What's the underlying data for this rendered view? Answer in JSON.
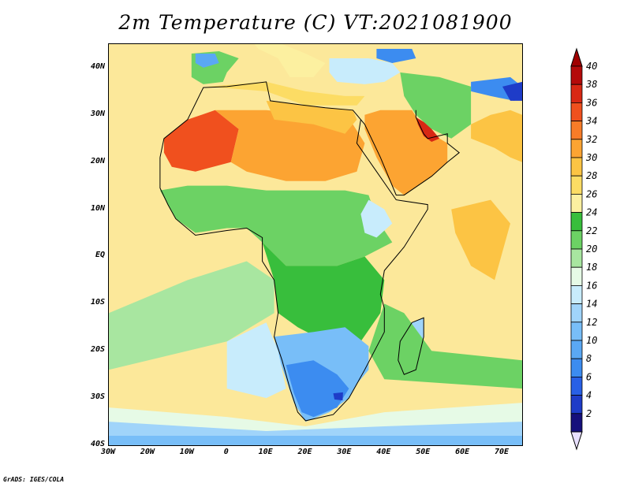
{
  "title": "2m Temperature (C) VT:2021081900",
  "credit": "GrADS: IGES/COLA",
  "map": {
    "projection": "lat-lon",
    "lon_range": [
      -30,
      75
    ],
    "lat_range": [
      -40,
      45
    ],
    "ocean_color": "#fce89a",
    "lat_ticks": [
      {
        "value": 40,
        "label": "40N"
      },
      {
        "value": 30,
        "label": "30N"
      },
      {
        "value": 20,
        "label": "20N"
      },
      {
        "value": 10,
        "label": "10N"
      },
      {
        "value": 0,
        "label": "EQ"
      },
      {
        "value": -10,
        "label": "10S"
      },
      {
        "value": -20,
        "label": "20S"
      },
      {
        "value": -30,
        "label": "30S"
      },
      {
        "value": -40,
        "label": "40S"
      }
    ],
    "lon_ticks": [
      {
        "value": -30,
        "label": "30W"
      },
      {
        "value": -20,
        "label": "20W"
      },
      {
        "value": -10,
        "label": "10W"
      },
      {
        "value": 0,
        "label": "0"
      },
      {
        "value": 10,
        "label": "10E"
      },
      {
        "value": 20,
        "label": "20E"
      },
      {
        "value": 30,
        "label": "30E"
      },
      {
        "value": 40,
        "label": "40E"
      },
      {
        "value": 50,
        "label": "50E"
      },
      {
        "value": 60,
        "label": "60E"
      },
      {
        "value": 70,
        "label": "70E"
      }
    ]
  },
  "colorbar": {
    "levels": [
      "2",
      "4",
      "6",
      "8",
      "10",
      "12",
      "14",
      "16",
      "18",
      "20",
      "22",
      "24",
      "26",
      "28",
      "30",
      "32",
      "34",
      "36",
      "38",
      "40"
    ],
    "colors": [
      "#16107c",
      "#1e3cc8",
      "#2860e6",
      "#3c8cf0",
      "#5aa8f4",
      "#78bef8",
      "#a0d4fa",
      "#c8ecfc",
      "#e6fae6",
      "#a8e6a0",
      "#6cd264",
      "#38be3c",
      "#fcf0a0",
      "#fcdc64",
      "#fcc444",
      "#fca432",
      "#f87c28",
      "#f0501e",
      "#d82814",
      "#b40a0a"
    ],
    "low_end_color": "#e8e0ff",
    "high_end_color": "#a00000"
  },
  "regions": [
    {
      "name": "sahara-west-hot",
      "temp": 35,
      "color": "#f0501e",
      "poly": [
        [
          -16,
          25
        ],
        [
          -10,
          29
        ],
        [
          -3,
          31
        ],
        [
          3,
          27
        ],
        [
          1,
          20
        ],
        [
          -8,
          18
        ],
        [
          -14,
          19
        ],
        [
          -16,
          22
        ]
      ]
    },
    {
      "name": "sahara-central",
      "temp": 31,
      "color": "#fca432",
      "poly": [
        [
          -3,
          31
        ],
        [
          10,
          31
        ],
        [
          22,
          30
        ],
        [
          32,
          28
        ],
        [
          35,
          24
        ],
        [
          33,
          18
        ],
        [
          25,
          16
        ],
        [
          15,
          16
        ],
        [
          5,
          18
        ],
        [
          1,
          20
        ],
        [
          3,
          27
        ]
      ]
    },
    {
      "name": "arabia-hot",
      "temp": 31,
      "color": "#fca432",
      "poly": [
        [
          35,
          30
        ],
        [
          39,
          31
        ],
        [
          47,
          31
        ],
        [
          50,
          27
        ],
        [
          56,
          24
        ],
        [
          56,
          20
        ],
        [
          52,
          17
        ],
        [
          45,
          13
        ],
        [
          42,
          15
        ],
        [
          38,
          21
        ],
        [
          35,
          27
        ]
      ]
    },
    {
      "name": "persian-gulf-hot",
      "temp": 37,
      "color": "#d82814",
      "poly": [
        [
          48,
          29.5
        ],
        [
          51,
          28
        ],
        [
          54,
          25
        ],
        [
          52,
          24.3
        ],
        [
          50,
          25.5
        ],
        [
          48.5,
          28
        ]
      ]
    },
    {
      "name": "egypt-libya",
      "temp": 29,
      "color": "#fcc444",
      "poly": [
        [
          10,
          33
        ],
        [
          20,
          32
        ],
        [
          25,
          31.5
        ],
        [
          32,
          31
        ],
        [
          33,
          29
        ],
        [
          30,
          26
        ],
        [
          22,
          28
        ],
        [
          12,
          29
        ]
      ]
    },
    {
      "name": "sahel-green",
      "temp": 23,
      "color": "#6cd264",
      "poly": [
        [
          -17,
          14
        ],
        [
          -10,
          15
        ],
        [
          0,
          15
        ],
        [
          10,
          14
        ],
        [
          20,
          14
        ],
        [
          30,
          14
        ],
        [
          36,
          13
        ],
        [
          38,
          8
        ],
        [
          42,
          3
        ],
        [
          35,
          0
        ],
        [
          28,
          -2
        ],
        [
          15,
          -2
        ],
        [
          9,
          3
        ],
        [
          5,
          6
        ],
        [
          0,
          6
        ],
        [
          -8,
          5
        ],
        [
          -13,
          8
        ]
      ]
    },
    {
      "name": "central-africa-green",
      "temp": 22,
      "color": "#38be3c",
      "poly": [
        [
          9,
          3
        ],
        [
          15,
          -2
        ],
        [
          28,
          -2
        ],
        [
          35,
          0
        ],
        [
          40,
          -5
        ],
        [
          39,
          -12
        ],
        [
          34,
          -18
        ],
        [
          25,
          -18
        ],
        [
          18,
          -15
        ],
        [
          13,
          -12
        ],
        [
          12,
          -5
        ]
      ]
    },
    {
      "name": "east-africa-highlands",
      "temp": 17,
      "color": "#c8ecfc",
      "poly": [
        [
          36,
          12
        ],
        [
          40,
          10
        ],
        [
          42,
          7
        ],
        [
          38,
          4
        ],
        [
          35,
          5
        ],
        [
          34,
          9
        ]
      ]
    },
    {
      "name": "southern-africa-blue",
      "temp": 11,
      "color": "#78bef8",
      "poly": [
        [
          12,
          -17
        ],
        [
          22,
          -16
        ],
        [
          30,
          -15
        ],
        [
          36,
          -19
        ],
        [
          36,
          -24
        ],
        [
          33,
          -27
        ],
        [
          31,
          -30
        ],
        [
          26,
          -33
        ],
        [
          20,
          -35
        ],
        [
          17,
          -31
        ],
        [
          15,
          -26
        ],
        [
          13,
          -21
        ]
      ]
    },
    {
      "name": "south-africa-cold",
      "temp": 7,
      "color": "#3c8cf0",
      "poly": [
        [
          15,
          -23
        ],
        [
          22,
          -22
        ],
        [
          28,
          -25
        ],
        [
          31,
          -28
        ],
        [
          28,
          -32
        ],
        [
          22,
          -34
        ],
        [
          19,
          -33
        ],
        [
          17,
          -29
        ]
      ]
    },
    {
      "name": "lesotho-cold",
      "temp": 4,
      "color": "#1e3cc8",
      "poly": [
        [
          27,
          -29
        ],
        [
          29.5,
          -28.8
        ],
        [
          29.4,
          -30.5
        ],
        [
          27.3,
          -30.3
        ]
      ]
    },
    {
      "name": "madagascar",
      "temp": 18,
      "color": "#a0d4fa",
      "poly": [
        [
          47,
          -14
        ],
        [
          50,
          -13
        ],
        [
          50,
          -17
        ],
        [
          48,
          -24
        ],
        [
          45,
          -25
        ],
        [
          43.5,
          -22
        ],
        [
          44,
          -18
        ]
      ]
    },
    {
      "name": "iberia",
      "temp": 22,
      "color": "#6cd264",
      "poly": [
        [
          -9,
          43
        ],
        [
          -2,
          43.5
        ],
        [
          3,
          42
        ],
        [
          0,
          39
        ],
        [
          -1,
          37
        ],
        [
          -6,
          36.5
        ],
        [
          -9,
          38
        ]
      ]
    },
    {
      "name": "iberia-cool",
      "temp": 13,
      "color": "#5aa8f4",
      "poly": [
        [
          -8,
          43
        ],
        [
          -3,
          43
        ],
        [
          -2,
          41
        ],
        [
          -6,
          40
        ],
        [
          -8,
          41
        ]
      ]
    },
    {
      "name": "italy-balkans",
      "temp": 24,
      "color": "#fcf0a0",
      "poly": [
        [
          7,
          45
        ],
        [
          14,
          45
        ],
        [
          20,
          43
        ],
        [
          25,
          41
        ],
        [
          22,
          38
        ],
        [
          16,
          38
        ],
        [
          13,
          42
        ],
        [
          8,
          44
        ]
      ]
    },
    {
      "name": "turkey",
      "temp": 17,
      "color": "#c8ecfc",
      "poly": [
        [
          26,
          42
        ],
        [
          36,
          42
        ],
        [
          42,
          41
        ],
        [
          44,
          39
        ],
        [
          40,
          37
        ],
        [
          35,
          36.5
        ],
        [
          28,
          37
        ],
        [
          26,
          39
        ]
      ]
    },
    {
      "name": "caucasus-cold",
      "temp": 9,
      "color": "#3c8cf0",
      "poly": [
        [
          38,
          44
        ],
        [
          47,
          44
        ],
        [
          48,
          42
        ],
        [
          42,
          41
        ],
        [
          38,
          42
        ]
      ]
    },
    {
      "name": "iran",
      "temp": 23,
      "color": "#6cd264",
      "poly": [
        [
          44,
          39
        ],
        [
          54,
          38
        ],
        [
          62,
          36
        ],
        [
          62,
          28
        ],
        [
          57,
          25
        ],
        [
          52,
          27
        ],
        [
          48,
          30
        ],
        [
          45,
          34
        ]
      ]
    },
    {
      "name": "afghanistan-cold",
      "temp": 10,
      "color": "#3c8cf0",
      "poly": [
        [
          62,
          37
        ],
        [
          72,
          38
        ],
        [
          75,
          36
        ],
        [
          73,
          33
        ],
        [
          67,
          34
        ],
        [
          62,
          35
        ]
      ]
    },
    {
      "name": "himalaya-cold",
      "temp": 5,
      "color": "#1e3cc8",
      "poly": [
        [
          70,
          36
        ],
        [
          75,
          37
        ],
        [
          75,
          33
        ],
        [
          72,
          33
        ]
      ]
    },
    {
      "name": "pakistan-india",
      "temp": 29,
      "color": "#fcc444",
      "poly": [
        [
          62,
          28
        ],
        [
          67,
          30
        ],
        [
          72,
          31
        ],
        [
          75,
          30
        ],
        [
          75,
          20
        ],
        [
          72,
          21
        ],
        [
          68,
          23
        ],
        [
          62,
          25
        ]
      ]
    },
    {
      "name": "ocean-south-cool",
      "temp": 18,
      "color": "#e6fae6",
      "poly": [
        [
          -30,
          -32
        ],
        [
          0,
          -34
        ],
        [
          20,
          -36
        ],
        [
          40,
          -33
        ],
        [
          75,
          -31
        ],
        [
          75,
          -40
        ],
        [
          -30,
          -40
        ]
      ]
    },
    {
      "name": "ocean-south-cold",
      "temp": 14,
      "color": "#a0d4fa",
      "poly": [
        [
          -30,
          -35
        ],
        [
          10,
          -37
        ],
        [
          40,
          -36
        ],
        [
          75,
          -35
        ],
        [
          75,
          -40
        ],
        [
          -30,
          -40
        ]
      ]
    },
    {
      "name": "ocean-south-coldest",
      "temp": 12,
      "color": "#78bef8",
      "poly": [
        [
          -30,
          -38
        ],
        [
          75,
          -38
        ],
        [
          75,
          -40
        ],
        [
          -30,
          -40
        ]
      ]
    },
    {
      "name": "benguela-cool",
      "temp": 19,
      "color": "#c8ecfc",
      "poly": [
        [
          0,
          -18
        ],
        [
          10,
          -14
        ],
        [
          13,
          -20
        ],
        [
          15,
          -28
        ],
        [
          10,
          -30
        ],
        [
          0,
          -28
        ]
      ]
    },
    {
      "name": "atlantic-green-tongue",
      "temp": 21,
      "color": "#a8e6a0",
      "poly": [
        [
          -30,
          -12
        ],
        [
          -10,
          -5
        ],
        [
          5,
          -1
        ],
        [
          12,
          -5
        ],
        [
          12,
          -12
        ],
        [
          0,
          -18
        ],
        [
          -30,
          -24
        ]
      ]
    },
    {
      "name": "mozambique-channel-green",
      "temp": 22,
      "color": "#6cd264",
      "poly": [
        [
          40,
          -10
        ],
        [
          45,
          -12
        ],
        [
          52,
          -20
        ],
        [
          75,
          -22
        ],
        [
          75,
          -28
        ],
        [
          40,
          -26
        ],
        [
          36,
          -20
        ]
      ]
    },
    {
      "name": "indian-ocean-warm",
      "temp": 29,
      "color": "#fcc444",
      "poly": [
        [
          57,
          10
        ],
        [
          67,
          12
        ],
        [
          72,
          7
        ],
        [
          68,
          -5
        ],
        [
          62,
          -2
        ],
        [
          58,
          5
        ]
      ]
    },
    {
      "name": "mediterranean-warm",
      "temp": 27,
      "color": "#fcdc64",
      "poly": [
        [
          -5,
          36
        ],
        [
          10,
          37
        ],
        [
          20,
          35
        ],
        [
          30,
          34
        ],
        [
          35,
          34
        ],
        [
          33,
          32
        ],
        [
          20,
          32
        ],
        [
          10,
          35
        ]
      ]
    }
  ]
}
